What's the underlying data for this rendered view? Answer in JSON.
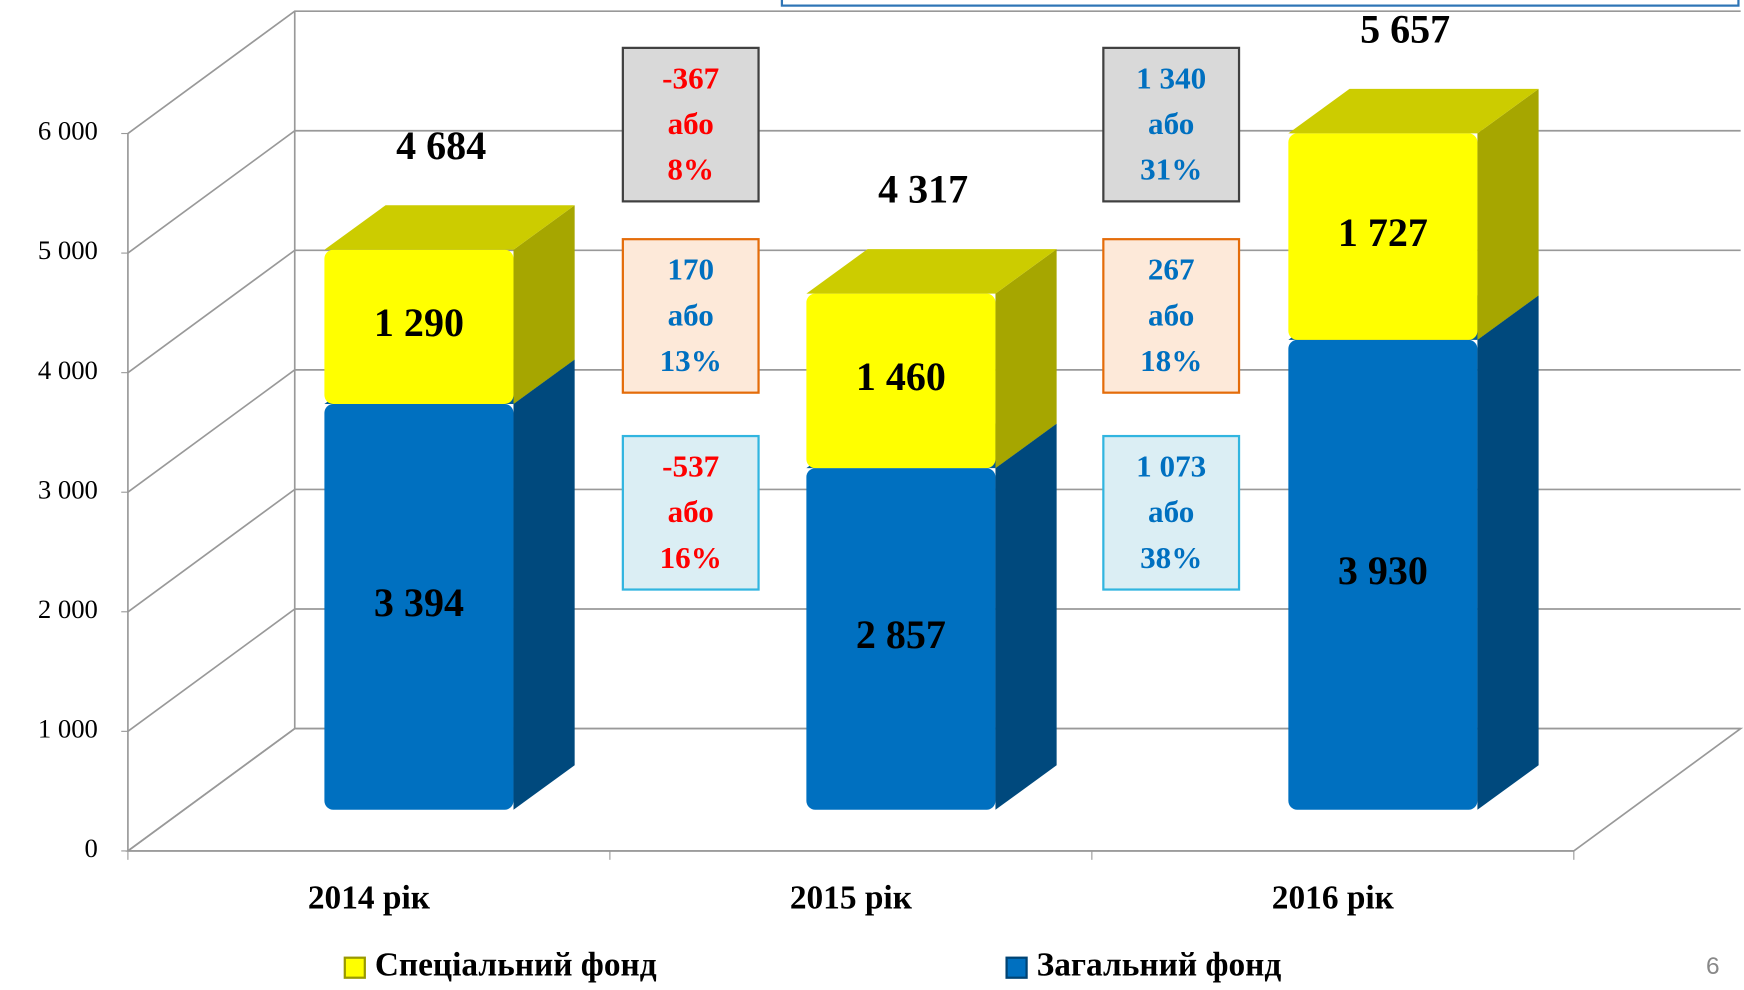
{
  "chart_data": {
    "type": "bar3d-stacked",
    "categories": [
      "2014 рік",
      "2015 рік",
      "2016 рік"
    ],
    "series": [
      {
        "name": "Загальний фонд",
        "color": "#0070c0",
        "values": [
          3394,
          2857,
          3930
        ],
        "value_labels": [
          "3 394",
          "2 857",
          "3 930"
        ]
      },
      {
        "name": "Спеціальний фонд",
        "color": "#ffff00",
        "values": [
          1290,
          1460,
          1727
        ],
        "value_labels": [
          "1 290",
          "1 460",
          "1 727"
        ]
      }
    ],
    "totals": {
      "values": [
        4684,
        4317,
        5657
      ],
      "value_labels": [
        "4 684",
        "4 317",
        "5 657"
      ]
    },
    "ylim": [
      0,
      6000
    ],
    "yticks": [
      0,
      {
        "value": 1000,
        "label": "1 000"
      },
      {
        "value": 2000,
        "label": "2 000"
      },
      {
        "value": 3000,
        "label": "3 000"
      },
      {
        "value": 4000,
        "label": "4 000"
      },
      {
        "value": 5000,
        "label": "5 000"
      },
      {
        "value": 6000,
        "label": "6 000"
      }
    ],
    "grid": true,
    "legend": "bottom",
    "change_boxes": [
      [
        {
          "lines": [
            "-367",
            "або",
            "8%"
          ],
          "fill": "#d9d9d9",
          "border": "#404040",
          "text_color": "#ff0000"
        },
        {
          "lines": [
            "170",
            "або",
            "13%"
          ],
          "fill": "#fde9d9",
          "border": "#e46c0a",
          "text_color": "#0070c0"
        },
        {
          "lines": [
            "-537",
            "або",
            "16%"
          ],
          "fill": "#dbeef4",
          "border": "#31b5e0",
          "text_color": "#ff0000"
        }
      ],
      [
        {
          "lines": [
            "1 340",
            "або",
            "31%"
          ],
          "fill": "#d9d9d9",
          "border": "#404040",
          "text_color": "#0070c0"
        },
        {
          "lines": [
            "267",
            "або",
            "18%"
          ],
          "fill": "#fde9d9",
          "border": "#e46c0a",
          "text_color": "#0070c0"
        },
        {
          "lines": [
            "1 073",
            "або",
            "38%"
          ],
          "fill": "#dbeef4",
          "border": "#31b5e0",
          "text_color": "#0070c0"
        }
      ]
    ]
  },
  "page_number": "6"
}
